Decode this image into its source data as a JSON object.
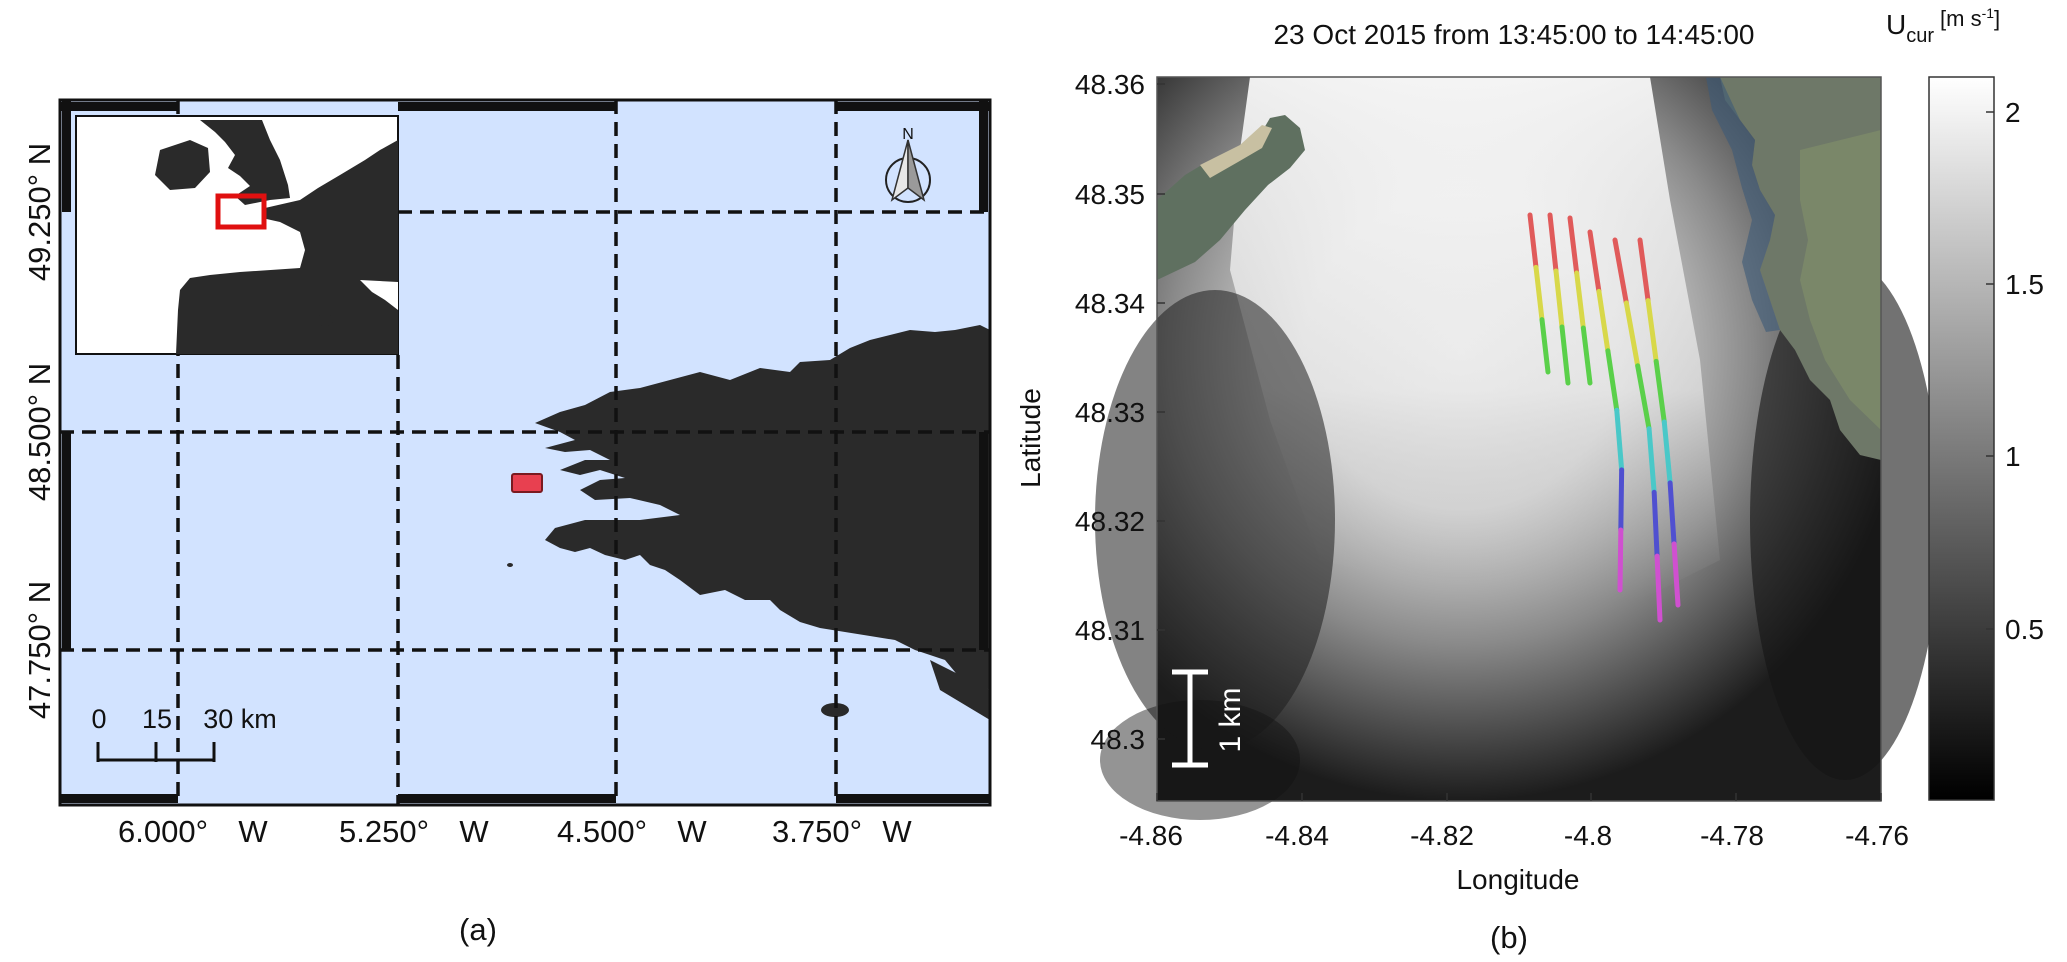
{
  "panel_a": {
    "caption": "(a)",
    "lon_labels": [
      {
        "deg": "6.000°",
        "dir": "W"
      },
      {
        "deg": "5.250°",
        "dir": "W"
      },
      {
        "deg": "4.500°",
        "dir": "W"
      },
      {
        "deg": "3.750°",
        "dir": "W"
      }
    ],
    "lat_labels": [
      "49.250° N",
      "48.500° N",
      "47.750° N"
    ],
    "scale_bar": {
      "labels": [
        "0",
        "15",
        "30 km"
      ]
    },
    "north_arrow": {
      "label": "N",
      "icon": "north-arrow-icon"
    },
    "colors": {
      "sea": "#d2e3ff",
      "land": "#2a2a2a",
      "study_area": "#e84050",
      "inset_box": "#e01010"
    }
  },
  "panel_b": {
    "caption": "(b)",
    "title": "23 Oct 2015 from 13:45:00 to 14:45:00",
    "xlabel": "Longitude",
    "ylabel": "Latitude",
    "xticks": [
      "-4.86",
      "-4.84",
      "-4.82",
      "-4.8",
      "-4.78",
      "-4.76"
    ],
    "yticks": [
      "48.36",
      "48.35",
      "48.34",
      "48.33",
      "48.32",
      "48.31",
      "48.3"
    ],
    "scale_bar_label": "1 km",
    "colorbar": {
      "title_main": "U",
      "title_sub": "cur",
      "title_units": "[m s",
      "title_exp": "-1",
      "title_close": "]",
      "ticks": [
        "2",
        "1.5",
        "1",
        "0.5"
      ]
    },
    "track_colors": [
      "#e05a5a",
      "#d8d84a",
      "#5ad04a",
      "#4ac8c8",
      "#5050d0",
      "#d050d0"
    ]
  }
}
